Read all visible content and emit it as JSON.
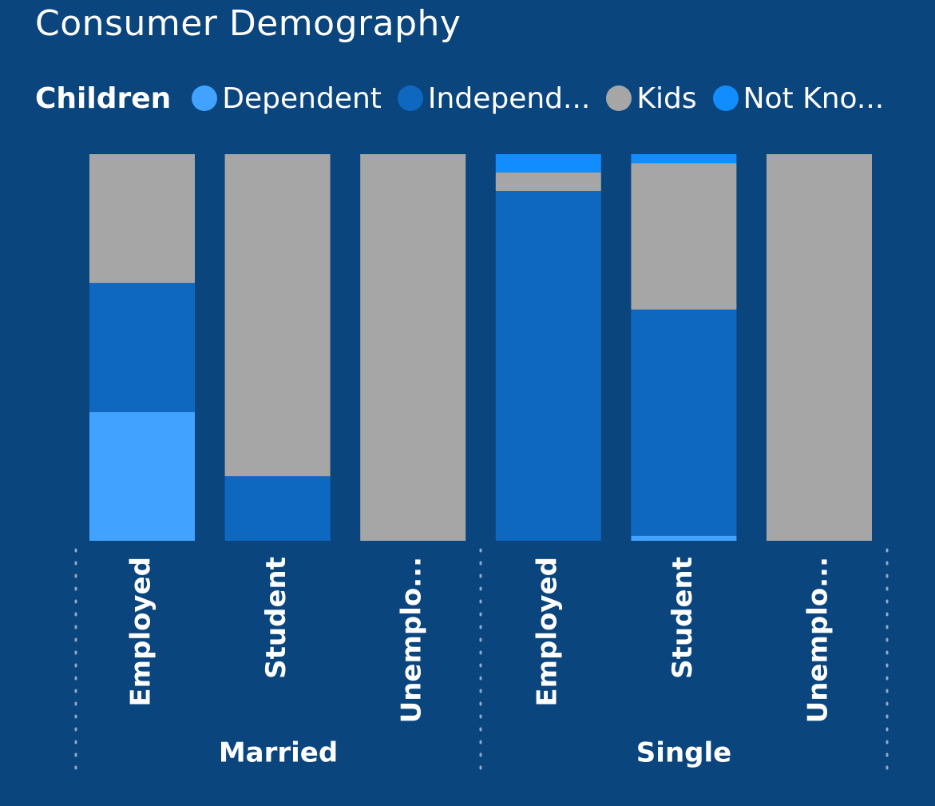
{
  "chart_data": {
    "type": "bar",
    "stacking": "percent",
    "title": "Consumer Demography",
    "legend": {
      "title": "Children",
      "placement": "top-left",
      "entries": [
        "Dependent",
        "Independ...",
        "Kids",
        "Not Kno..."
      ]
    },
    "groups": [
      {
        "name": "Married",
        "categories": [
          "Employed",
          "Student",
          "Unemplo..."
        ]
      },
      {
        "name": "Single",
        "categories": [
          "Employed",
          "Student",
          "Unemplo..."
        ]
      }
    ],
    "series": [
      {
        "name": "Dependent",
        "color": "#41a2ff",
        "values": [
          33.3,
          0,
          0,
          0,
          1.3,
          0
        ]
      },
      {
        "name": "Independent",
        "color": "#0f68c0",
        "values": [
          33.4,
          16.7,
          0,
          90.5,
          58.5,
          0
        ]
      },
      {
        "name": "Kids",
        "color": "#a6a6a6",
        "values": [
          33.3,
          83.3,
          100,
          4.8,
          37.9,
          100
        ]
      },
      {
        "name": "Not Known",
        "color": "#118dff",
        "values": [
          0,
          0,
          0,
          4.7,
          2.3,
          0
        ]
      }
    ],
    "ylim": [
      0,
      100
    ],
    "grid": false
  }
}
